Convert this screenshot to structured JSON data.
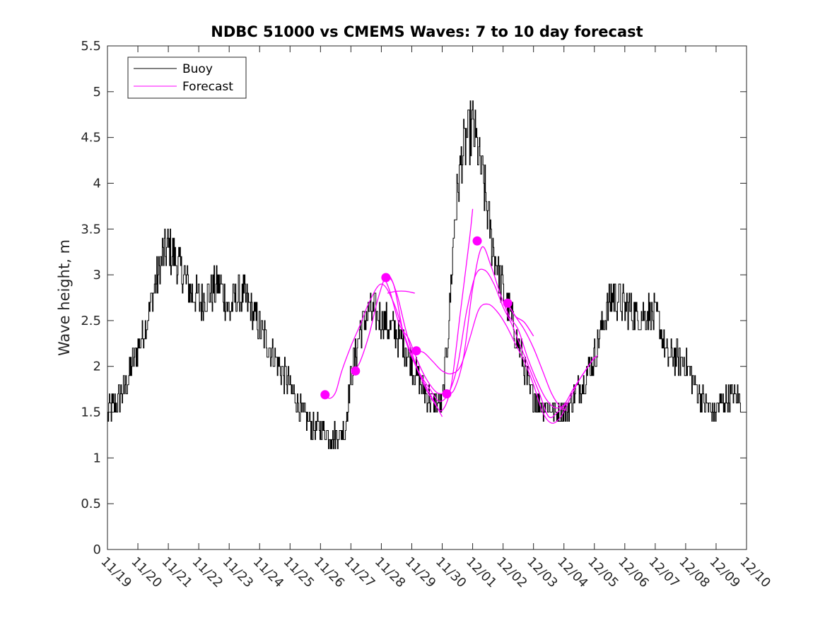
{
  "chart_data": {
    "type": "line",
    "title": "NDBC 51000 vs CMEMS Waves: 7 to 10 day forecast",
    "xlabel": "",
    "ylabel": "Wave height, m",
    "xlim": [
      0,
      21
    ],
    "ylim": [
      0,
      5.5
    ],
    "x_unit": "days since 11/19",
    "x_ticks": [
      0,
      1,
      2,
      3,
      4,
      5,
      6,
      7,
      8,
      9,
      10,
      11,
      12,
      13,
      14,
      15,
      16,
      17,
      18,
      19,
      20,
      21
    ],
    "x_tick_labels": [
      "11/19",
      "11/20",
      "11/21",
      "11/22",
      "11/23",
      "11/24",
      "11/25",
      "11/26",
      "11/27",
      "11/28",
      "11/29",
      "11/30",
      "12/01",
      "12/02",
      "12/03",
      "12/04",
      "12/05",
      "12/06",
      "12/07",
      "12/08",
      "12/09",
      "12/10"
    ],
    "y_ticks": [
      0,
      0.5,
      1,
      1.5,
      2,
      2.5,
      3,
      3.5,
      4,
      4.5,
      5,
      5.5
    ],
    "y_tick_labels": [
      "0",
      "0.5",
      "1",
      "1.5",
      "2",
      "2.5",
      "3",
      "3.5",
      "4",
      "4.5",
      "5",
      "5.5"
    ],
    "legend": {
      "position": "top-left",
      "entries": [
        {
          "label": "Buoy",
          "color": "#000000"
        },
        {
          "label": "Forecast",
          "color": "#ff00ff"
        }
      ]
    },
    "colors": {
      "buoy": "#000000",
      "forecast": "#ff00ff",
      "axes": "#262626"
    },
    "series": [
      {
        "name": "Buoy",
        "kind": "noisy-line",
        "color": "#000000",
        "x": [
          0.0,
          0.3,
          0.6,
          0.9,
          1.2,
          1.5,
          1.8,
          2.0,
          2.2,
          2.5,
          2.8,
          3.1,
          3.4,
          3.7,
          4.0,
          4.3,
          4.6,
          4.9,
          5.2,
          5.5,
          5.8,
          6.1,
          6.4,
          6.7,
          7.0,
          7.3,
          7.6,
          7.8,
          8.0,
          8.3,
          8.6,
          8.9,
          9.2,
          9.5,
          9.8,
          10.1,
          10.4,
          10.7,
          11.0,
          11.2,
          11.4,
          11.6,
          11.8,
          12.0,
          12.2,
          12.4,
          12.6,
          12.8,
          13.0,
          13.3,
          13.6,
          13.9,
          14.2,
          14.5,
          14.8,
          15.1,
          15.4,
          15.7,
          16.0,
          16.3,
          16.6,
          16.9,
          17.2,
          17.5,
          17.8,
          18.1,
          18.4,
          18.7,
          19.0,
          19.3,
          19.6,
          19.9,
          20.2,
          20.5,
          20.8
        ],
        "y": [
          1.5,
          1.6,
          1.8,
          2.1,
          2.4,
          2.8,
          3.2,
          3.3,
          3.2,
          3.0,
          2.8,
          2.7,
          2.8,
          2.9,
          2.6,
          2.8,
          2.7,
          2.5,
          2.3,
          2.1,
          1.9,
          1.7,
          1.5,
          1.35,
          1.3,
          1.25,
          1.25,
          1.3,
          1.9,
          2.4,
          2.6,
          2.55,
          2.45,
          2.35,
          2.2,
          1.95,
          1.75,
          1.6,
          1.6,
          2.4,
          3.6,
          4.2,
          4.5,
          4.6,
          4.3,
          3.9,
          3.4,
          3.1,
          2.8,
          2.5,
          2.1,
          1.7,
          1.6,
          1.55,
          1.5,
          1.5,
          1.7,
          1.9,
          2.1,
          2.5,
          2.8,
          2.7,
          2.6,
          2.55,
          2.6,
          2.5,
          2.1,
          2.1,
          2.05,
          1.8,
          1.6,
          1.5,
          1.6,
          1.7,
          1.65
        ]
      },
      {
        "name": "Forecast run 1",
        "color": "#ff00ff",
        "x": [
          7.1,
          7.3,
          7.5,
          7.7,
          8.0,
          8.3,
          8.6,
          9.0,
          9.4,
          9.8,
          10.2,
          10.6,
          11.0
        ],
        "y": [
          1.7,
          1.65,
          1.72,
          1.95,
          2.22,
          2.45,
          2.7,
          2.9,
          2.7,
          2.3,
          1.95,
          1.7,
          1.45
        ]
      },
      {
        "name": "Forecast run 2",
        "color": "#ff00ff",
        "x": [
          8.1,
          8.3,
          8.6,
          8.9,
          9.2,
          9.5,
          9.8,
          10.1,
          10.4,
          10.7,
          11.0,
          11.3,
          11.6,
          11.9,
          12.0
        ],
        "y": [
          1.95,
          2.05,
          2.35,
          2.75,
          3.0,
          2.8,
          2.4,
          2.05,
          1.8,
          1.62,
          1.52,
          1.8,
          2.6,
          3.4,
          3.72
        ]
      },
      {
        "name": "Forecast run 3",
        "color": "#ff00ff",
        "x": [
          9.1,
          9.4,
          9.7,
          10.0,
          10.3,
          10.6,
          10.9,
          11.2,
          11.5,
          11.8,
          12.1,
          12.4,
          12.7,
          13.0,
          13.3,
          13.6,
          13.9,
          14.2,
          14.5,
          14.8,
          15.1
        ],
        "y": [
          2.97,
          2.9,
          2.4,
          2.1,
          1.9,
          1.75,
          1.62,
          1.7,
          2.0,
          2.6,
          3.0,
          3.05,
          2.9,
          2.65,
          2.45,
          2.2,
          1.95,
          1.7,
          1.45,
          1.5,
          1.6
        ]
      },
      {
        "name": "Forecast run 4",
        "color": "#ff00ff",
        "x": [
          10.15,
          10.4,
          10.7,
          11.0,
          11.3,
          11.6,
          11.9,
          12.2,
          12.5,
          12.8,
          13.1,
          13.4,
          13.7,
          14.0,
          14.3,
          14.6,
          14.9,
          15.2,
          15.5,
          15.8,
          16.0
        ],
        "y": [
          2.17,
          2.15,
          2.05,
          1.95,
          1.92,
          2.0,
          2.3,
          2.62,
          2.68,
          2.6,
          2.45,
          2.25,
          2.05,
          1.8,
          1.5,
          1.38,
          1.45,
          1.65,
          1.85,
          2.0,
          2.1
        ]
      },
      {
        "name": "Forecast run 5",
        "color": "#ff00ff",
        "x": [
          11.15,
          11.4,
          11.7,
          12.0,
          12.3,
          12.6,
          12.9,
          13.2,
          13.5,
          13.8,
          14.1,
          14.4,
          14.7,
          15.0,
          15.3,
          15.6,
          15.9,
          16.1
        ],
        "y": [
          1.7,
          1.75,
          2.1,
          2.85,
          3.3,
          3.1,
          2.8,
          2.55,
          2.4,
          2.1,
          1.85,
          1.65,
          1.55,
          1.58,
          1.75,
          1.9,
          2.05,
          2.12
        ]
      },
      {
        "name": "Forecast run 6",
        "color": "#ff00ff",
        "x": [
          9.1,
          9.3,
          9.6,
          9.9,
          10.2,
          10.5,
          10.8,
          11.0
        ],
        "y": [
          2.97,
          2.8,
          2.45,
          2.3,
          2.05,
          1.85,
          1.72,
          1.7
        ]
      },
      {
        "name": "Forecast run 7",
        "color": "#ff00ff",
        "x": [
          13.15,
          13.4,
          13.7,
          14.0,
          14.3,
          14.6,
          14.9,
          15.1
        ],
        "y": [
          2.69,
          2.55,
          2.4,
          2.2,
          1.95,
          1.7,
          1.55,
          1.52
        ]
      },
      {
        "name": "Forecast run 8",
        "color": "#ff00ff",
        "x": [
          9.2,
          9.5,
          9.8,
          10.1
        ],
        "y": [
          2.8,
          2.82,
          2.82,
          2.8
        ]
      },
      {
        "name": "Forecast run 9",
        "color": "#ff00ff",
        "x": [
          13.15,
          13.4,
          13.7,
          14.0
        ],
        "y": [
          2.69,
          2.55,
          2.48,
          2.33
        ]
      }
    ],
    "markers": {
      "name": "Forecast initial points",
      "color": "#ff00ff",
      "x": [
        7.15,
        8.15,
        9.15,
        10.15,
        11.15,
        12.15,
        13.15
      ],
      "y": [
        1.69,
        1.95,
        2.97,
        2.17,
        1.7,
        3.37,
        2.69
      ]
    }
  }
}
